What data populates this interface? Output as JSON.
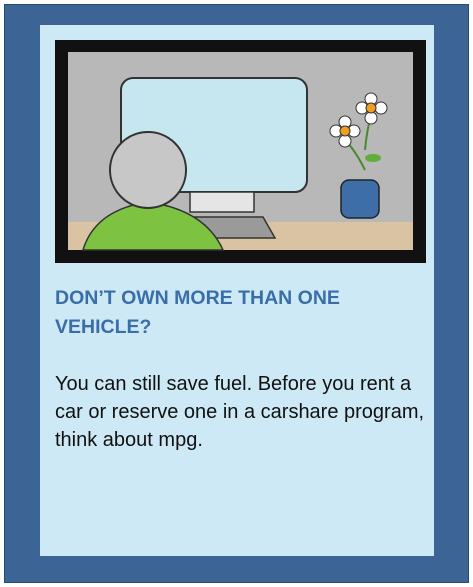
{
  "heading": "DON’T OWN MORE THAN ONE VEHICLE?",
  "body": "You can still save fuel. Before you rent a car or reserve one in a carshare program, think about mpg."
}
